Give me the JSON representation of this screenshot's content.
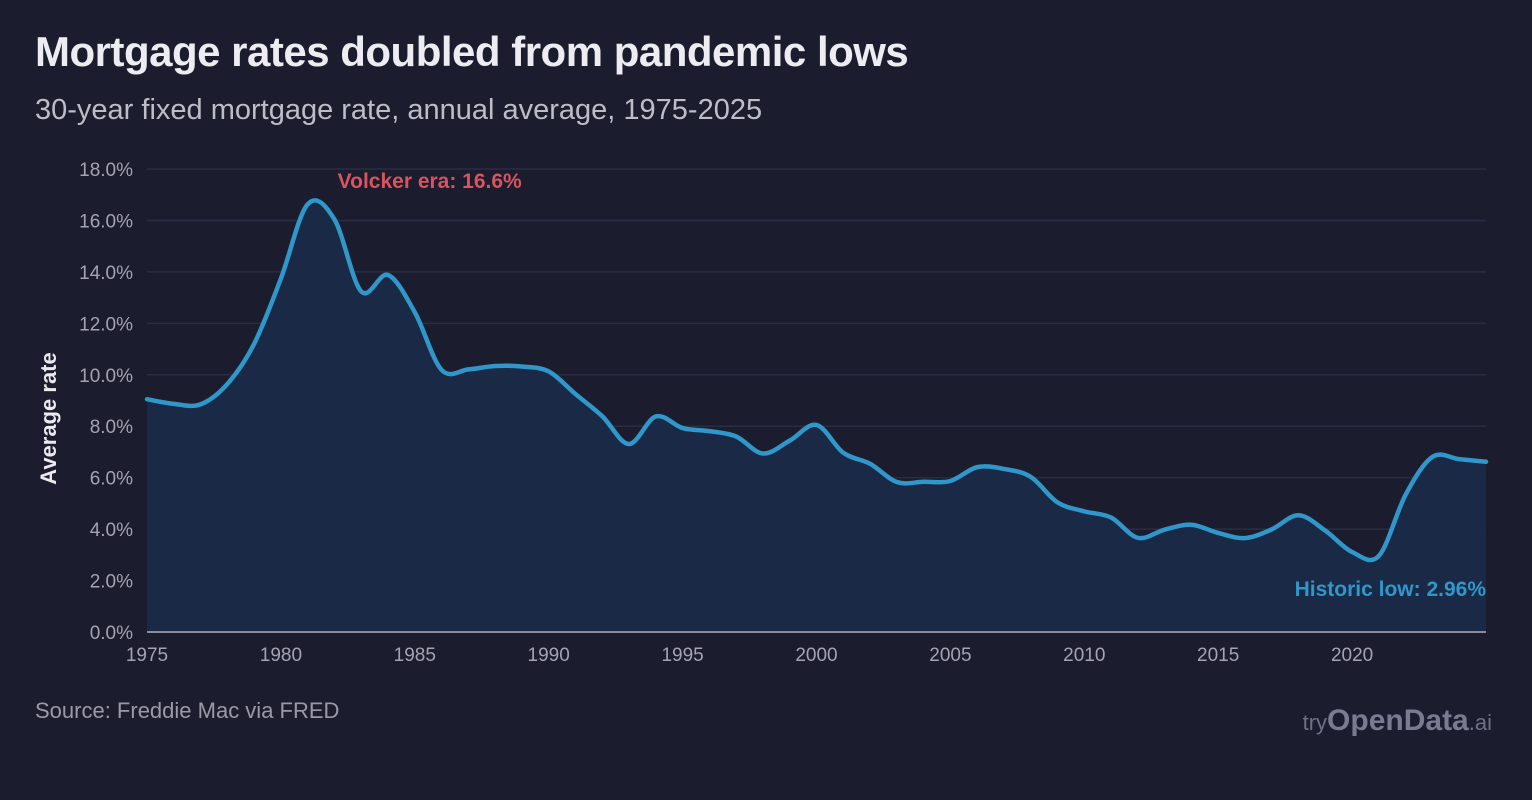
{
  "header": {
    "title": "Mortgage rates doubled from pandemic lows",
    "subtitle": "30-year fixed mortgage rate, annual average, 1975-2025"
  },
  "footer": {
    "source": "Source: Freddie Mac via FRED",
    "brand_prefix": "try",
    "brand_main": "OpenData",
    "brand_suffix": ".ai"
  },
  "colors": {
    "background": "#1b1c2e",
    "line": "#2f97c9",
    "area": "#1a2a47",
    "grid": "#2a2c44",
    "volcker": "#d9545e",
    "low": "#2f97c9"
  },
  "chart_data": {
    "type": "area",
    "title": "Mortgage rates doubled from pandemic lows",
    "xlabel": "",
    "ylabel": "Average rate",
    "x": [
      1975,
      1976,
      1977,
      1978,
      1979,
      1980,
      1981,
      1982,
      1983,
      1984,
      1985,
      1986,
      1987,
      1988,
      1989,
      1990,
      1991,
      1992,
      1993,
      1994,
      1995,
      1996,
      1997,
      1998,
      1999,
      2000,
      2001,
      2002,
      2003,
      2004,
      2005,
      2006,
      2007,
      2008,
      2009,
      2010,
      2011,
      2012,
      2013,
      2014,
      2015,
      2016,
      2017,
      2018,
      2019,
      2020,
      2021,
      2022,
      2023,
      2024,
      2025
    ],
    "series": [
      {
        "name": "30-year fixed mortgage rate",
        "values": [
          9.05,
          8.87,
          8.85,
          9.64,
          11.2,
          13.74,
          16.63,
          16.04,
          13.24,
          13.88,
          12.43,
          10.19,
          10.21,
          10.34,
          10.32,
          10.13,
          9.25,
          8.39,
          7.31,
          8.38,
          7.93,
          7.81,
          7.6,
          6.94,
          7.44,
          8.05,
          6.97,
          6.54,
          5.83,
          5.84,
          5.87,
          6.41,
          6.34,
          6.03,
          5.04,
          4.69,
          4.45,
          3.66,
          3.98,
          4.17,
          3.85,
          3.65,
          3.99,
          4.54,
          3.94,
          3.11,
          2.96,
          5.34,
          6.81,
          6.72,
          6.62
        ]
      }
    ],
    "xlim": [
      1975,
      2025
    ],
    "ylim": [
      0,
      18
    ],
    "y_ticks": [
      "0.0%",
      "2.0%",
      "4.0%",
      "6.0%",
      "8.0%",
      "10.0%",
      "12.0%",
      "14.0%",
      "16.0%",
      "18.0%"
    ],
    "x_ticks": [
      "1975",
      "1980",
      "1985",
      "1990",
      "1995",
      "2000",
      "2005",
      "2010",
      "2015",
      "2020"
    ],
    "grid": true,
    "annotations": [
      {
        "text": "Volcker era: 16.6%",
        "x": 1981,
        "y": 16.63,
        "color": "volcker"
      },
      {
        "text": "Historic low: 2.96%",
        "x": 2021,
        "y": 2.96,
        "color": "low"
      }
    ]
  }
}
